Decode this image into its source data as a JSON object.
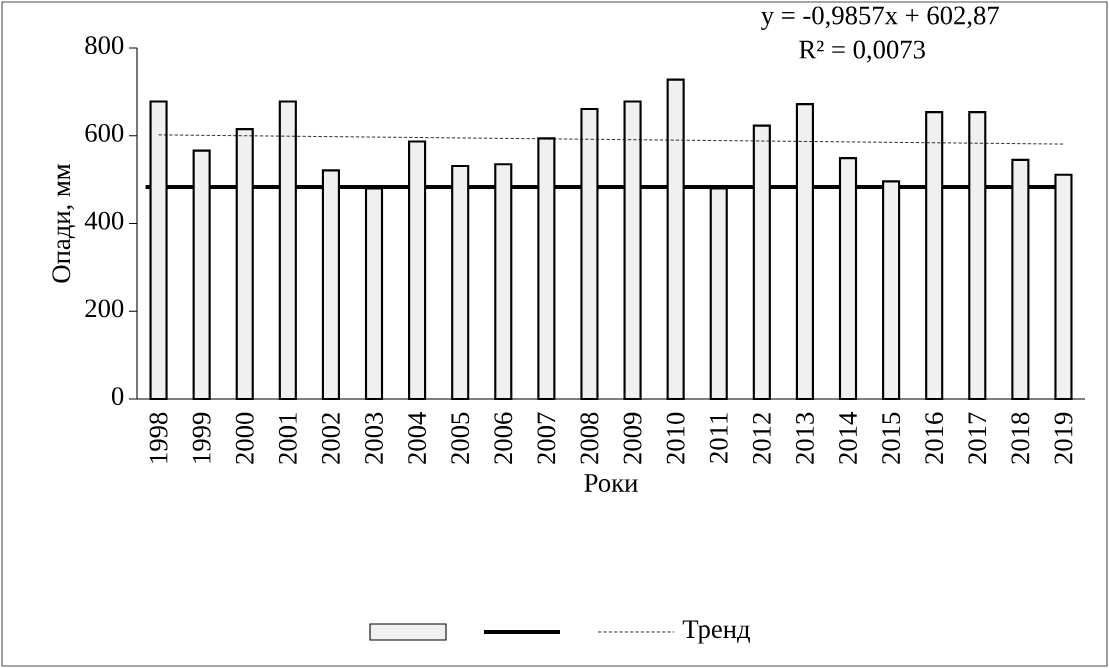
{
  "chart_data": {
    "type": "bar",
    "categories": [
      "1998",
      "1999",
      "2000",
      "2001",
      "2002",
      "2003",
      "2004",
      "2005",
      "2006",
      "2007",
      "2008",
      "2009",
      "2010",
      "2011",
      "2012",
      "2013",
      "2014",
      "2015",
      "2016",
      "2017",
      "2018",
      "2019"
    ],
    "series": [
      {
        "color": "#f0f0f0",
        "values": [
          678,
          566,
          615,
          678,
          521,
          480,
          587,
          531,
          535,
          594,
          661,
          678,
          728,
          480,
          623,
          672,
          549,
          496,
          654,
          654,
          545,
          511
        ]
      },
      {
        "type": "line",
        "name": "Тренд",
        "color": "#000000",
        "line_style": "dashed",
        "values": [
          602,
          601,
          600,
          599,
          598,
          597,
          596,
          595,
          594,
          593,
          592,
          591,
          590,
          589,
          588,
          587,
          586,
          585,
          584,
          583,
          582,
          581
        ]
      }
    ],
    "ref_lines": [
      {
        "axis": "y",
        "value": 483,
        "color": "#000000",
        "line_style": "solid"
      }
    ],
    "xlabel": "Роки",
    "ylabel": "Опади, мм",
    "ylim": [
      0,
      800
    ],
    "yticks": [
      0,
      200,
      400,
      600,
      800
    ],
    "annotations": [
      "y = -0,9857x + 602,87",
      "R² = 0,0073"
    ],
    "legend": "bottom"
  }
}
